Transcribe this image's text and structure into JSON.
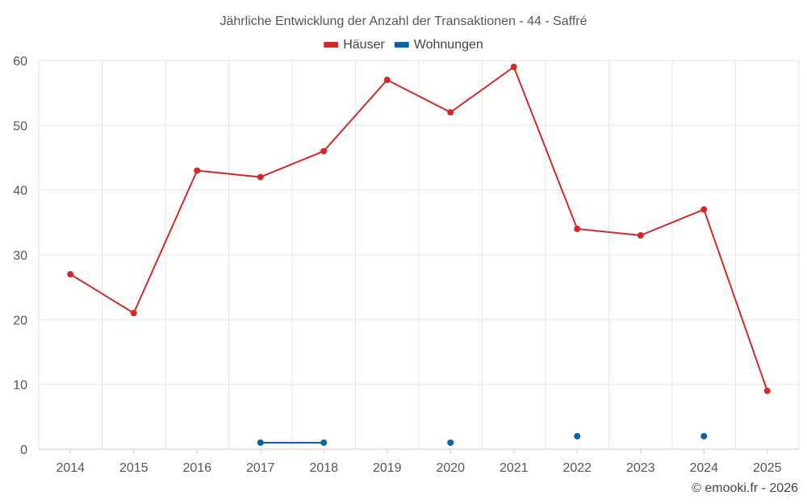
{
  "chart_data": {
    "type": "line",
    "title": "Jährliche Entwicklung der Anzahl der Transaktionen - 44 - Saffré",
    "categories": [
      "2014",
      "2015",
      "2016",
      "2017",
      "2018",
      "2019",
      "2020",
      "2021",
      "2022",
      "2023",
      "2024",
      "2025"
    ],
    "series": [
      {
        "name": "Häuser",
        "color": "#d62728",
        "values": [
          27,
          21,
          43,
          42,
          46,
          57,
          52,
          59,
          34,
          33,
          37,
          9
        ]
      },
      {
        "name": "Wohnungen",
        "color": "#0a64a0",
        "values": [
          null,
          null,
          null,
          1,
          1,
          null,
          1,
          null,
          2,
          null,
          2,
          null
        ]
      }
    ],
    "ylim": [
      0,
      60
    ],
    "yticks": [
      0,
      10,
      20,
      30,
      40,
      50,
      60
    ],
    "xlabel": "",
    "ylabel": "",
    "grid": true,
    "legend_position": "top-center"
  },
  "credit": "© emooki.fr - 2026"
}
